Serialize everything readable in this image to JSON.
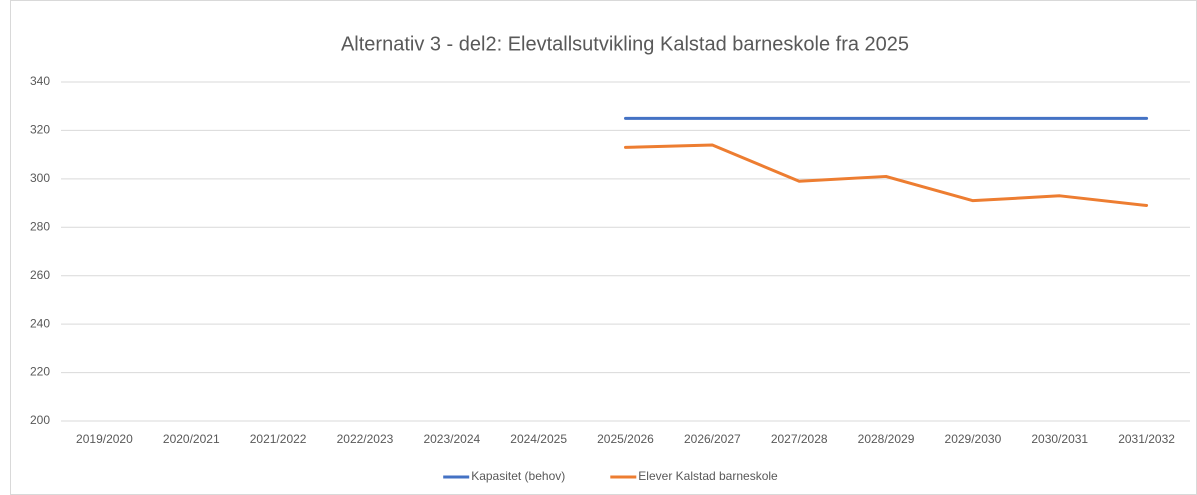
{
  "chart_data": {
    "type": "line",
    "title": "Alternativ 3 - del2: Elevtallsutvikling Kalstad barneskole fra 2025",
    "categories": [
      "2019/2020",
      "2020/2021",
      "2021/2022",
      "2022/2023",
      "2023/2024",
      "2024/2025",
      "2025/2026",
      "2026/2027",
      "2027/2028",
      "2028/2029",
      "2029/2030",
      "2030/2031",
      "2031/2032"
    ],
    "series": [
      {
        "name": "Kapasitet (behov)",
        "color": "#4472c4",
        "values": [
          null,
          null,
          null,
          null,
          null,
          null,
          325,
          325,
          325,
          325,
          325,
          325,
          325
        ]
      },
      {
        "name": "Elever Kalstad barneskole",
        "color": "#ed7d31",
        "values": [
          null,
          null,
          null,
          null,
          null,
          null,
          313,
          314,
          299,
          301,
          291,
          293,
          289
        ]
      }
    ],
    "ylim": [
      200,
      340
    ],
    "yticks": [
      200,
      220,
      240,
      260,
      280,
      300,
      320,
      340
    ],
    "grid": true,
    "legend": "bottom"
  }
}
